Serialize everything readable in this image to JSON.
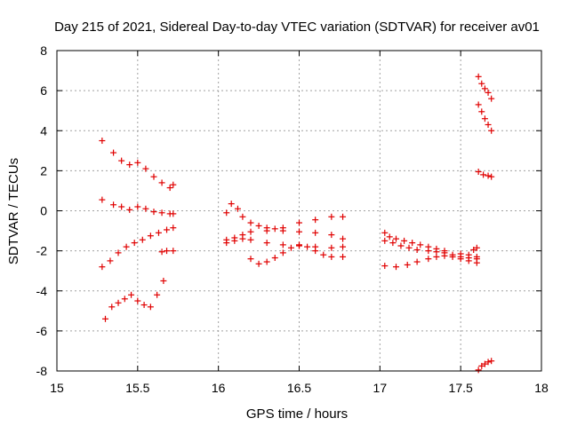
{
  "chart_data": {
    "type": "scatter",
    "title": "Day 215 of 2021, Sidereal Day-to-day VTEC variation (SDTVAR) for receiver av01",
    "xlabel": "GPS time / hours",
    "ylabel": "SDTVAR / TECUs",
    "xlim": [
      15,
      18
    ],
    "ylim": [
      -8,
      8
    ],
    "xticks": [
      "15",
      "15.5",
      "16",
      "16.5",
      "17",
      "17.5",
      "18"
    ],
    "yticks": [
      "8",
      "6",
      "4",
      "2",
      "0",
      "-2",
      "-4",
      "-6",
      "-8"
    ],
    "xtick_values": [
      15,
      15.5,
      16,
      16.5,
      17,
      17.5,
      18
    ],
    "ytick_values": [
      8,
      6,
      4,
      2,
      0,
      -2,
      -4,
      -6,
      -8
    ],
    "grid": true,
    "marker": "plus",
    "color": "#e00000",
    "segments": [
      {
        "x": [
          15.28,
          15.35,
          15.4,
          15.45,
          15.5,
          15.55,
          15.6,
          15.65,
          15.7,
          15.72
        ],
        "y": [
          3.5,
          2.9,
          2.5,
          2.3,
          2.4,
          2.1,
          1.7,
          1.4,
          1.15,
          1.3
        ]
      },
      {
        "x": [
          15.28,
          15.35,
          15.4,
          15.45,
          15.5,
          15.55,
          15.6,
          15.65,
          15.7,
          15.72
        ],
        "y": [
          0.55,
          0.3,
          0.2,
          0.05,
          0.2,
          0.1,
          -0.05,
          -0.1,
          -0.15,
          -0.15
        ]
      },
      {
        "x": [
          15.28,
          15.33,
          15.38,
          15.43,
          15.48,
          15.53,
          15.58,
          15.63,
          15.68,
          15.72
        ],
        "y": [
          -2.8,
          -2.5,
          -2.1,
          -1.8,
          -1.6,
          -1.45,
          -1.25,
          -1.1,
          -0.95,
          -0.85
        ]
      },
      {
        "x": [
          15.65,
          15.68,
          15.72
        ],
        "y": [
          -2.05,
          -2.0,
          -2.0
        ]
      },
      {
        "x": [
          15.3,
          15.34,
          15.38,
          15.42,
          15.46,
          15.5,
          15.54,
          15.58,
          15.62,
          15.66
        ],
        "y": [
          -5.4,
          -4.8,
          -4.6,
          -4.4,
          -4.2,
          -4.5,
          -4.7,
          -4.8,
          -4.2,
          -3.5
        ]
      },
      {
        "x": [
          16.05,
          16.08,
          16.12,
          16.15,
          16.2,
          16.25,
          16.3,
          16.35,
          16.4,
          16.5,
          16.6,
          16.7,
          16.77
        ],
        "y": [
          -0.1,
          0.35,
          0.1,
          -0.3,
          -0.6,
          -0.75,
          -0.85,
          -0.9,
          -0.85,
          -0.6,
          -0.45,
          -0.3,
          -0.3
        ]
      },
      {
        "x": [
          16.05,
          16.1,
          16.15,
          16.2,
          16.3,
          16.4,
          16.5,
          16.6,
          16.7,
          16.77
        ],
        "y": [
          -1.45,
          -1.35,
          -1.2,
          -1.05,
          -1.0,
          -1.0,
          -1.05,
          -1.1,
          -1.2,
          -1.4
        ]
      },
      {
        "x": [
          16.05,
          16.1,
          16.15,
          16.2,
          16.3,
          16.4,
          16.5,
          16.6,
          16.7,
          16.77
        ],
        "y": [
          -1.6,
          -1.5,
          -1.4,
          -1.45,
          -1.6,
          -1.7,
          -1.75,
          -1.8,
          -1.85,
          -1.8
        ]
      },
      {
        "x": [
          16.2,
          16.25,
          16.3,
          16.35,
          16.4,
          16.45,
          16.5,
          16.55,
          16.6,
          16.65,
          16.7,
          16.77
        ],
        "y": [
          -2.4,
          -2.65,
          -2.55,
          -2.35,
          -2.1,
          -1.85,
          -1.7,
          -1.8,
          -2.0,
          -2.2,
          -2.3,
          -2.3
        ]
      },
      {
        "x": [
          17.03,
          17.06,
          17.1,
          17.15,
          17.2,
          17.25,
          17.3,
          17.35,
          17.4,
          17.5,
          17.55,
          17.6
        ],
        "y": [
          -1.1,
          -1.3,
          -1.4,
          -1.5,
          -1.6,
          -1.7,
          -1.8,
          -1.9,
          -2.0,
          -2.15,
          -2.2,
          -2.3
        ]
      },
      {
        "x": [
          17.03,
          17.08,
          17.13,
          17.18,
          17.23,
          17.3,
          17.35,
          17.4,
          17.45,
          17.5,
          17.55,
          17.6
        ],
        "y": [
          -1.5,
          -1.6,
          -1.75,
          -1.85,
          -1.95,
          -2.0,
          -2.05,
          -2.1,
          -2.2,
          -2.3,
          -2.35,
          -2.4
        ]
      },
      {
        "x": [
          17.03,
          17.1,
          17.17,
          17.23,
          17.3,
          17.35,
          17.4,
          17.45,
          17.5,
          17.55,
          17.6
        ],
        "y": [
          -2.75,
          -2.8,
          -2.7,
          -2.55,
          -2.4,
          -2.3,
          -2.25,
          -2.3,
          -2.4,
          -2.5,
          -2.6
        ]
      },
      {
        "x": [
          17.58,
          17.6
        ],
        "y": [
          -1.95,
          -1.85
        ]
      },
      {
        "x": [
          17.61,
          17.63,
          17.65,
          17.67,
          17.69
        ],
        "y": [
          6.7,
          6.35,
          6.1,
          5.9,
          5.6
        ]
      },
      {
        "x": [
          17.61,
          17.63,
          17.65,
          17.67,
          17.69
        ],
        "y": [
          5.3,
          4.95,
          4.6,
          4.3,
          4.0
        ]
      },
      {
        "x": [
          17.61,
          17.64,
          17.67,
          17.69
        ],
        "y": [
          1.95,
          1.8,
          1.75,
          1.7
        ]
      },
      {
        "x": [
          17.61,
          17.63,
          17.65,
          17.67,
          17.69
        ],
        "y": [
          -7.95,
          -7.75,
          -7.65,
          -7.55,
          -7.5
        ]
      }
    ]
  }
}
